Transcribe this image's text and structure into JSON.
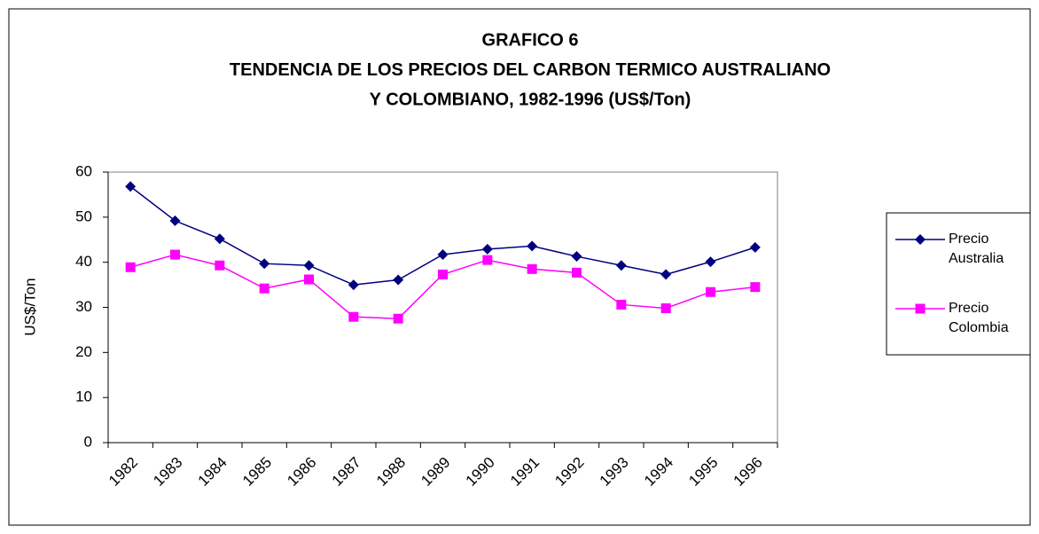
{
  "chart_data": {
    "type": "line",
    "title": [
      "GRAFICO 6",
      "TENDENCIA DE LOS PRECIOS DEL CARBON TERMICO AUSTRALIANO",
      "Y COLOMBIANO, 1982-1996 (US$/Ton)"
    ],
    "y_label": "US$/Ton",
    "categories": [
      "1982",
      "1983",
      "1984",
      "1985",
      "1986",
      "1987",
      "1988",
      "1989",
      "1990",
      "1991",
      "1992",
      "1993",
      "1994",
      "1995",
      "1996"
    ],
    "series": [
      {
        "name": "Precio Australia",
        "color": "#000080",
        "marker": "diamond",
        "values": [
          56.8,
          49.2,
          45.2,
          39.7,
          39.3,
          35.0,
          36.1,
          41.7,
          42.9,
          43.6,
          41.3,
          39.3,
          37.3,
          40.1,
          43.3
        ]
      },
      {
        "name": "Precio Colombia",
        "color": "#ff00ff",
        "marker": "square",
        "values": [
          38.9,
          41.7,
          39.3,
          34.2,
          36.2,
          27.9,
          27.5,
          37.3,
          40.5,
          38.5,
          37.7,
          30.6,
          29.8,
          33.4,
          34.5
        ]
      }
    ],
    "ylim": [
      0,
      60
    ],
    "yticks": [
      0,
      10,
      20,
      30,
      40,
      50,
      60
    ],
    "grid": false,
    "legend": "right"
  }
}
